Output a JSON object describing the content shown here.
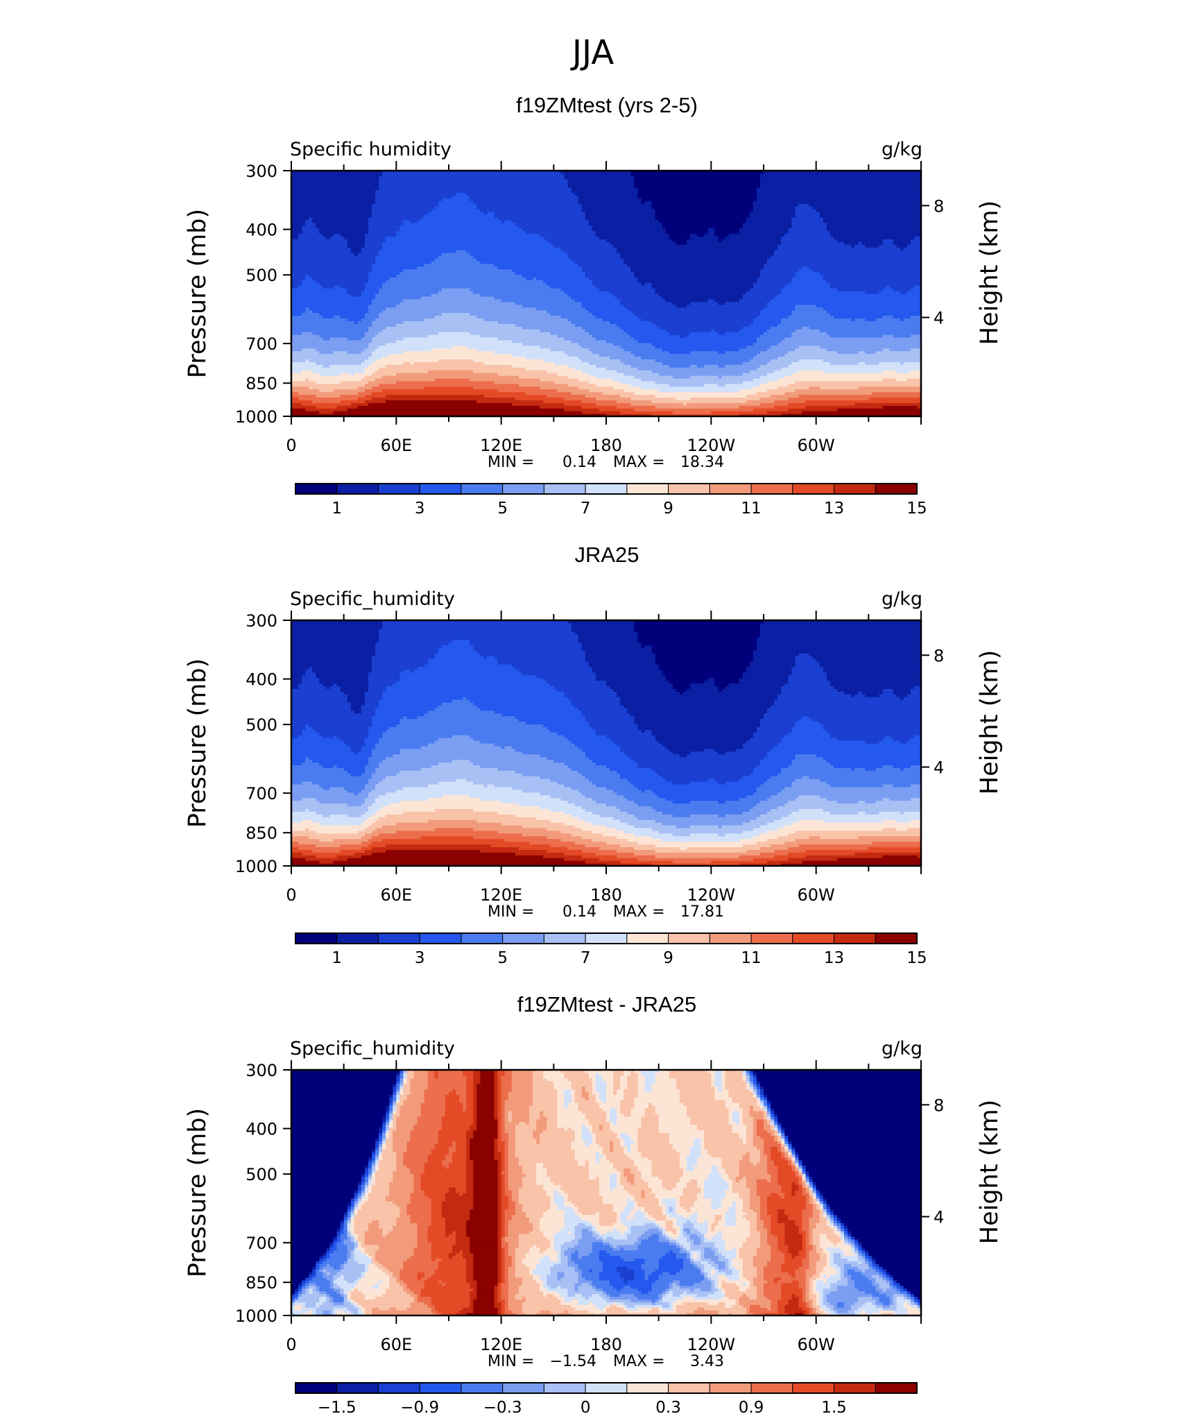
{
  "figure_title": "JJA",
  "colors": {
    "abs_scale": [
      "#00007a",
      "#0a1fa3",
      "#1a3fd1",
      "#2458ee",
      "#4a7cf0",
      "#7b9ef2",
      "#a9c0f5",
      "#d1e1fa",
      "#fde5d6",
      "#f9c3a9",
      "#f29b7b",
      "#ec6e4c",
      "#e44a26",
      "#c42a10",
      "#8b0000"
    ],
    "diff_scale": [
      "#00007a",
      "#0a1fa3",
      "#1a3fd1",
      "#2458ee",
      "#4a7cf0",
      "#7b9ef2",
      "#a9c0f5",
      "#d1e1fa",
      "#fde5d6",
      "#f9c3a9",
      "#f29b7b",
      "#ec6e4c",
      "#e44a26",
      "#c42a10",
      "#8b0000"
    ],
    "topo": "#000000"
  },
  "chart_data": [
    {
      "type": "heatmap",
      "title": "f19ZMtest (yrs 2-5)",
      "left_label": "Specific humidity",
      "units": "g/kg",
      "ylabel": "Pressure (mb)",
      "ylabel2": "Height (km)",
      "x_ticks": [
        "0",
        "60E",
        "120E",
        "180",
        "120W",
        "60W"
      ],
      "y_ticks": [
        "300",
        "400",
        "500",
        "700",
        "850",
        "1000"
      ],
      "y2_ticks": [
        "8",
        "4"
      ],
      "stats": {
        "min_label": "MIN =",
        "min": "0.14",
        "max_label": "MAX =",
        "max": "18.34"
      },
      "colorbar_labels": [
        "1",
        "3",
        "5",
        "7",
        "9",
        "11",
        "13",
        "15"
      ],
      "field": "model",
      "has_topography": true
    },
    {
      "type": "heatmap",
      "title": "JRA25",
      "left_label": "Specific_humidity",
      "units": "g/kg",
      "ylabel": "Pressure (mb)",
      "ylabel2": "Height (km)",
      "x_ticks": [
        "0",
        "60E",
        "120E",
        "180",
        "120W",
        "60W"
      ],
      "y_ticks": [
        "300",
        "400",
        "500",
        "700",
        "850",
        "1000"
      ],
      "y2_ticks": [
        "8",
        "4"
      ],
      "stats": {
        "min_label": "MIN =",
        "min": "0.14",
        "max_label": "MAX =",
        "max": "17.81"
      },
      "colorbar_labels": [
        "1",
        "3",
        "5",
        "7",
        "9",
        "11",
        "13",
        "15"
      ],
      "field": "obs",
      "has_topography": false
    },
    {
      "type": "heatmap",
      "title": "f19ZMtest - JRA25",
      "left_label": "Specific_humidity",
      "units": "g/kg",
      "ylabel": "Pressure (mb)",
      "ylabel2": "Height (km)",
      "x_ticks": [
        "0",
        "60E",
        "120E",
        "180",
        "120W",
        "60W"
      ],
      "y_ticks": [
        "300",
        "400",
        "500",
        "700",
        "850",
        "1000"
      ],
      "y2_ticks": [
        "8",
        "4"
      ],
      "stats": {
        "min_label": "MIN =",
        "min": "−1.54",
        "max_label": "MAX =",
        "max": "3.43"
      },
      "colorbar_labels": [
        "−1.5",
        "−0.9",
        "−0.3",
        "0",
        "0.3",
        "0.9",
        "1.5"
      ],
      "field": "diff",
      "has_topography": true
    }
  ]
}
